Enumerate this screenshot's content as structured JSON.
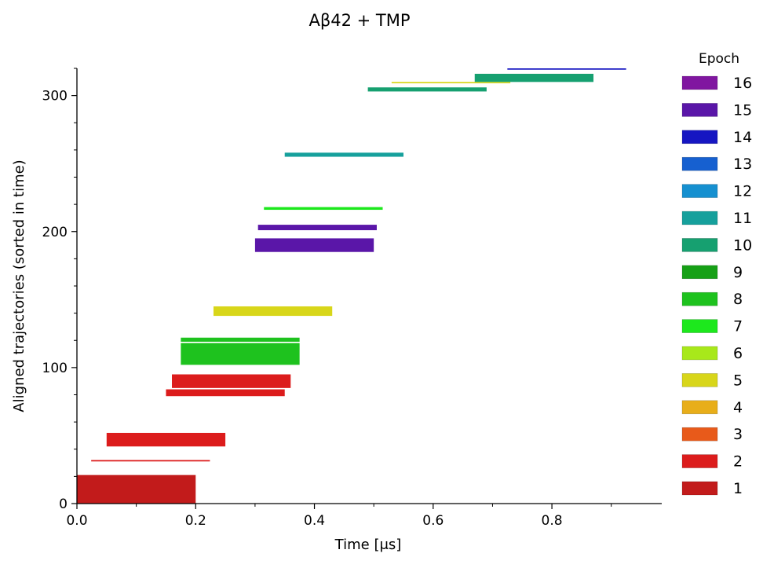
{
  "chart_data": {
    "type": "bar",
    "orientation": "horizontal-floating",
    "title": "Aβ42 + TMP",
    "xlabel": "Time [μs]",
    "ylabel": "Aligned trajectories (sorted in time)",
    "xlim": [
      0.0,
      0.985
    ],
    "ylim": [
      0,
      320
    ],
    "x_ticks": [
      "0.0",
      "0.2",
      "0.4",
      "0.6",
      "0.8"
    ],
    "x_tick_values": [
      0.0,
      0.2,
      0.4,
      0.6,
      0.8
    ],
    "y_ticks": [
      "0",
      "100",
      "200",
      "300"
    ],
    "y_tick_values": [
      0,
      100,
      200,
      300
    ],
    "grid": false,
    "legend": {
      "title": "Epoch",
      "placement": "right",
      "entries": [
        "16",
        "15",
        "14",
        "13",
        "12",
        "11",
        "10",
        "9",
        "8",
        "7",
        "6",
        "5",
        "4",
        "3",
        "2",
        "1"
      ]
    },
    "epoch_colors": {
      "1": "#c21b1b",
      "2": "#dc1c1c",
      "3": "#e85a1a",
      "4": "#e8ae1a",
      "5": "#d8d61a",
      "6": "#a8e81a",
      "7": "#1de81d",
      "8": "#1ec21e",
      "9": "#16a016",
      "10": "#16a070",
      "11": "#16a09c",
      "12": "#1690d0",
      "13": "#1660d0",
      "14": "#1616c2",
      "15": "#5a16a8",
      "16": "#8016a0"
    },
    "series": [
      {
        "epoch": 1,
        "y_start": 0,
        "y_end": 21,
        "t_start": 0.0,
        "t_end": 0.2
      },
      {
        "epoch": 2,
        "y_start": 31,
        "y_end": 32,
        "t_start": 0.024,
        "t_end": 0.224
      },
      {
        "epoch": 2,
        "y_start": 42,
        "y_end": 52,
        "t_start": 0.05,
        "t_end": 0.25
      },
      {
        "epoch": 2,
        "y_start": 79,
        "y_end": 84,
        "t_start": 0.15,
        "t_end": 0.35
      },
      {
        "epoch": 2,
        "y_start": 85,
        "y_end": 95,
        "t_start": 0.16,
        "t_end": 0.36
      },
      {
        "epoch": 8,
        "y_start": 102,
        "y_end": 118,
        "t_start": 0.175,
        "t_end": 0.375
      },
      {
        "epoch": 8,
        "y_start": 119,
        "y_end": 122,
        "t_start": 0.175,
        "t_end": 0.375
      },
      {
        "epoch": 5,
        "y_start": 138,
        "y_end": 145,
        "t_start": 0.23,
        "t_end": 0.43
      },
      {
        "epoch": 15,
        "y_start": 185,
        "y_end": 195,
        "t_start": 0.3,
        "t_end": 0.5
      },
      {
        "epoch": 15,
        "y_start": 201,
        "y_end": 205,
        "t_start": 0.305,
        "t_end": 0.505
      },
      {
        "epoch": 7,
        "y_start": 216,
        "y_end": 218,
        "t_start": 0.315,
        "t_end": 0.515
      },
      {
        "epoch": 11,
        "y_start": 255,
        "y_end": 258,
        "t_start": 0.35,
        "t_end": 0.55
      },
      {
        "epoch": 10,
        "y_start": 303,
        "y_end": 306,
        "t_start": 0.49,
        "t_end": 0.69
      },
      {
        "epoch": 5,
        "y_start": 309,
        "y_end": 310,
        "t_start": 0.53,
        "t_end": 0.73
      },
      {
        "epoch": 10,
        "y_start": 310,
        "y_end": 316,
        "t_start": 0.67,
        "t_end": 0.87
      },
      {
        "epoch": 14,
        "y_start": 319,
        "y_end": 320,
        "t_start": 0.725,
        "t_end": 0.925
      }
    ]
  }
}
